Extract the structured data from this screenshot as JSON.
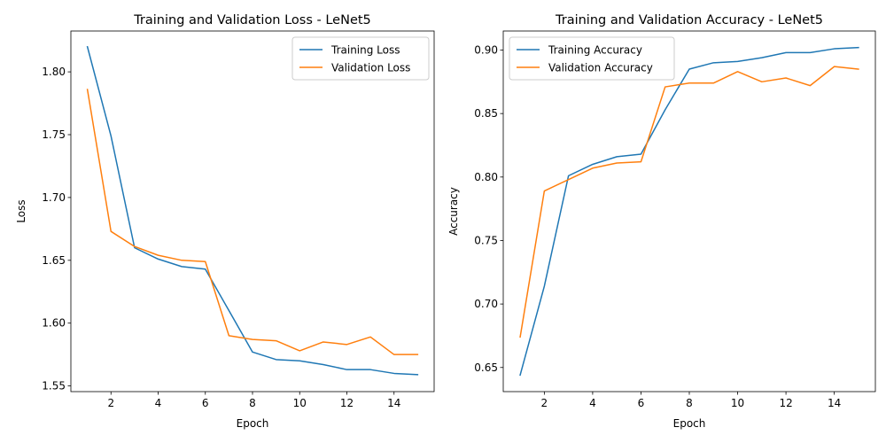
{
  "chart_data": [
    {
      "type": "line",
      "title": "Training and Validation Loss - LeNet5",
      "xlabel": "Epoch",
      "ylabel": "Loss",
      "xlim": [
        0.3,
        15.7
      ],
      "ylim": [
        1.5455,
        1.8325
      ],
      "xticks": [
        2,
        4,
        6,
        8,
        10,
        12,
        14
      ],
      "yticks": [
        1.55,
        1.6,
        1.65,
        1.7,
        1.75,
        1.8
      ],
      "grid": false,
      "legend": "upper right",
      "x": [
        1,
        2,
        3,
        4,
        5,
        6,
        7,
        8,
        9,
        10,
        11,
        12,
        13,
        14,
        15
      ],
      "series": [
        {
          "name": "Training Loss",
          "color": "#1f77b4",
          "values": [
            1.82,
            1.749,
            1.66,
            1.651,
            1.645,
            1.643,
            1.61,
            1.577,
            1.571,
            1.57,
            1.567,
            1.563,
            1.563,
            1.56,
            1.559
          ]
        },
        {
          "name": "Validation Loss",
          "color": "#ff7f0e",
          "values": [
            1.786,
            1.673,
            1.661,
            1.654,
            1.65,
            1.649,
            1.59,
            1.587,
            1.586,
            1.578,
            1.585,
            1.583,
            1.589,
            1.575,
            1.575
          ]
        }
      ]
    },
    {
      "type": "line",
      "title": "Training and Validation Accuracy - LeNet5",
      "xlabel": "Epoch",
      "ylabel": "Accuracy",
      "xlim": [
        0.3,
        15.7
      ],
      "ylim": [
        0.631,
        0.915
      ],
      "xticks": [
        2,
        4,
        6,
        8,
        10,
        12,
        14
      ],
      "yticks": [
        0.65,
        0.7,
        0.75,
        0.8,
        0.85,
        0.9
      ],
      "grid": false,
      "legend": "upper left",
      "x": [
        1,
        2,
        3,
        4,
        5,
        6,
        7,
        8,
        9,
        10,
        11,
        12,
        13,
        14,
        15
      ],
      "series": [
        {
          "name": "Training Accuracy",
          "color": "#1f77b4",
          "values": [
            0.644,
            0.714,
            0.801,
            0.81,
            0.816,
            0.818,
            0.853,
            0.885,
            0.89,
            0.891,
            0.894,
            0.898,
            0.898,
            0.901,
            0.902
          ]
        },
        {
          "name": "Validation Accuracy",
          "color": "#ff7f0e",
          "values": [
            0.674,
            0.789,
            0.798,
            0.807,
            0.811,
            0.812,
            0.871,
            0.874,
            0.874,
            0.883,
            0.875,
            0.878,
            0.872,
            0.887,
            0.885
          ]
        }
      ]
    }
  ]
}
